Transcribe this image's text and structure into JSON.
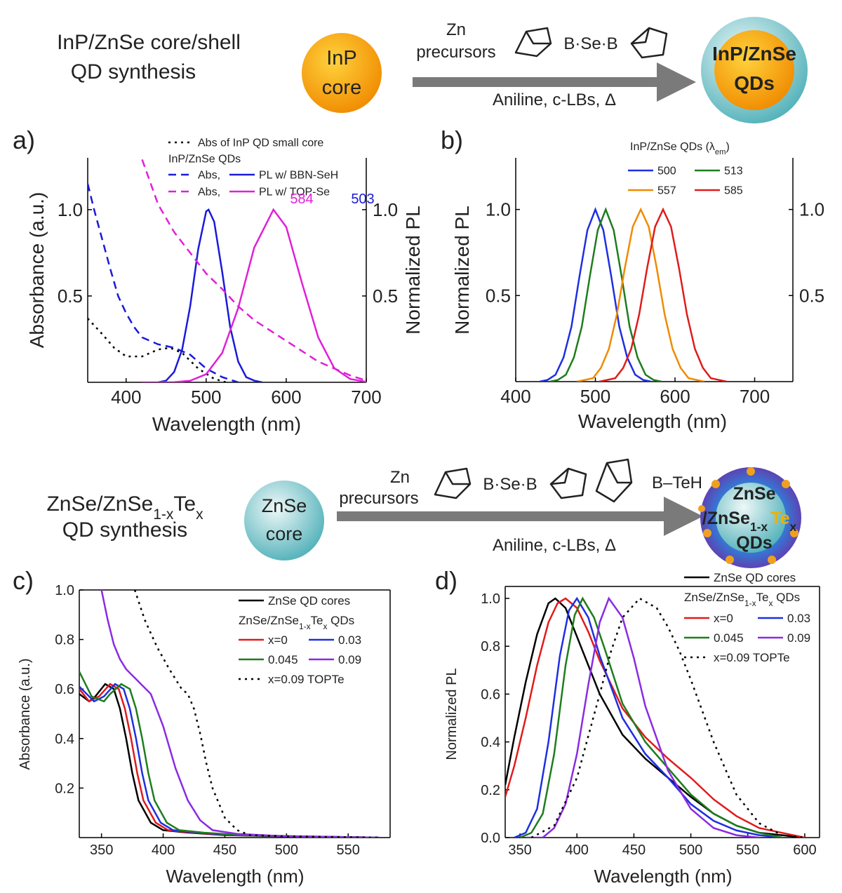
{
  "schemes": [
    {
      "title": [
        "InP/ZnSe core/shell",
        "QD synthesis"
      ],
      "core": [
        "InP",
        "core"
      ],
      "reagent": [
        "Zn",
        "precursors"
      ],
      "ligands": [
        "B·Se·B"
      ],
      "conditions": "Aniline, c-LBs, Δ",
      "product": [
        "InP/ZnSe",
        "QDs"
      ]
    },
    {
      "title": [
        [
          "ZnSe/ZnSe",
          {
            "sub": "1-x"
          },
          "Te",
          {
            "sub": "x"
          }
        ],
        "QD synthesis"
      ],
      "core": [
        "ZnSe",
        "core"
      ],
      "reagent": [
        "Zn",
        "precursors"
      ],
      "ligands": [
        "B·Se·B",
        "B–TeH"
      ],
      "conditions": "Aniline, c-LBs, Δ",
      "product": [
        "ZnSe",
        [
          "/ZnSe",
          {
            "sub": "1-x"
          },
          "Te",
          {
            "sub": "x"
          }
        ],
        "QDs"
      ]
    }
  ],
  "chart_data": [
    {
      "type": "line",
      "panel_label": "a)",
      "xlabel": "Wavelength (nm)",
      "ylabel": "Absorbance (a.u.)",
      "y2label": "Normalized PL",
      "xlim": [
        352,
        700
      ],
      "ylim": [
        0,
        1.3
      ],
      "y2lim": [
        0,
        1.3
      ],
      "xticks": [
        400,
        500,
        600,
        700
      ],
      "yticks": [
        0.5,
        {
          "value": 1,
          "label": "1.0"
        }
      ],
      "y2ticks": [
        0.5,
        {
          "value": 1,
          "label": "1.0"
        }
      ],
      "legend": {
        "subtitle": [
          "InP/ZnSe QDs"
        ]
      },
      "series": [
        {
          "name": "Abs of InP QD small core",
          "color": "#000000",
          "dash": "dotted",
          "x": [
            352,
            370,
            385,
            400,
            420,
            440,
            455,
            470,
            490,
            510,
            525
          ],
          "values": [
            0.37,
            0.28,
            0.2,
            0.15,
            0.15,
            0.19,
            0.2,
            0.17,
            0.08,
            0.02,
            0
          ]
        },
        {
          "name": "Abs,",
          "color": "#1a1adb",
          "dash": "dashed",
          "x": [
            352,
            360,
            370,
            380,
            390,
            400,
            410,
            420,
            440,
            460,
            480,
            500,
            520,
            540
          ],
          "values": [
            1.15,
            1.0,
            0.83,
            0.66,
            0.5,
            0.4,
            0.32,
            0.26,
            0.22,
            0.2,
            0.16,
            0.08,
            0.03,
            0
          ]
        },
        {
          "name": "PL w/ BBN-SeH",
          "color": "#1a1adb",
          "dash": "solid",
          "axis": "y2",
          "x": [
            440,
            450,
            460,
            470,
            480,
            490,
            500,
            503,
            510,
            520,
            530,
            540,
            550,
            560,
            570
          ],
          "values": [
            0,
            0.01,
            0.06,
            0.19,
            0.44,
            0.77,
            0.99,
            1.0,
            0.93,
            0.64,
            0.32,
            0.12,
            0.03,
            0.01,
            0
          ]
        },
        {
          "name": "Abs,",
          "color": "#e020d8",
          "dash": "dashed",
          "x": [
            420,
            440,
            460,
            480,
            500,
            520,
            540,
            560,
            580,
            600,
            620,
            640,
            660,
            680,
            700
          ],
          "values": [
            1.29,
            1.03,
            0.87,
            0.75,
            0.63,
            0.54,
            0.44,
            0.36,
            0.3,
            0.24,
            0.18,
            0.12,
            0.08,
            0.04,
            0.01
          ]
        },
        {
          "name": "PL w/ TOP-Se",
          "color": "#e020d8",
          "dash": "solid",
          "axis": "y2",
          "x": [
            420,
            440,
            460,
            480,
            500,
            520,
            540,
            560,
            584,
            600,
            620,
            640,
            660,
            680,
            700
          ],
          "values": [
            0,
            0,
            0.001,
            0.009,
            0.047,
            0.17,
            0.43,
            0.78,
            1.0,
            0.9,
            0.57,
            0.26,
            0.082,
            0.019,
            0.003
          ]
        }
      ],
      "annotations": [
        {
          "text": "503",
          "color": "#1a1adb"
        },
        {
          "text": "584",
          "color": "#e020d8"
        }
      ]
    },
    {
      "type": "line",
      "panel_label": "b)",
      "xlabel": "Wavelength (nm)",
      "ylabel": "Normalized PL",
      "xlim": [
        400,
        748
      ],
      "ylim": [
        0,
        1.3
      ],
      "y2lim": [
        0,
        1.3
      ],
      "xticks": [
        400,
        500,
        600,
        700
      ],
      "yticks": [
        0.5,
        {
          "value": 1,
          "label": "1.0"
        }
      ],
      "y2ticks": [
        0.5,
        {
          "value": 1,
          "label": "1.0"
        }
      ],
      "legend": {
        "title": [
          "InP/ZnSe QDs (λ",
          {
            "sub": "em"
          },
          ")"
        ]
      },
      "series": [
        {
          "name": "500",
          "color": "#1f2fe0",
          "dash": "solid",
          "x": [
            430,
            440,
            450,
            460,
            470,
            480,
            490,
            500,
            510,
            520,
            530,
            540,
            550,
            560,
            570
          ],
          "values": [
            0,
            0.01,
            0.04,
            0.14,
            0.32,
            0.61,
            0.88,
            1,
            0.88,
            0.61,
            0.32,
            0.14,
            0.04,
            0.01,
            0
          ]
        },
        {
          "name": "513",
          "color": "#1e7d1e",
          "dash": "solid",
          "x": [
            443,
            453,
            463,
            473,
            483,
            493,
            503,
            513,
            523,
            533,
            543,
            553,
            563,
            573,
            583
          ],
          "values": [
            0,
            0.01,
            0.04,
            0.14,
            0.32,
            0.61,
            0.88,
            1,
            0.88,
            0.61,
            0.32,
            0.14,
            0.04,
            0.01,
            0
          ]
        },
        {
          "name": "557",
          "color": "#f08a00",
          "dash": "solid",
          "x": [
            477,
            487,
            497,
            507,
            517,
            527,
            537,
            547,
            557,
            567,
            577,
            587,
            597,
            607,
            617,
            627,
            637
          ],
          "values": [
            0,
            0.01,
            0.02,
            0.08,
            0.19,
            0.39,
            0.66,
            0.9,
            1,
            0.9,
            0.66,
            0.39,
            0.19,
            0.08,
            0.02,
            0.01,
            0
          ]
        },
        {
          "name": "585",
          "color": "#e01b1b",
          "dash": "solid",
          "x": [
            505,
            515,
            525,
            535,
            545,
            555,
            565,
            575,
            585,
            595,
            605,
            615,
            625,
            635,
            645,
            655,
            665
          ],
          "values": [
            0,
            0.01,
            0.02,
            0.08,
            0.19,
            0.39,
            0.66,
            0.9,
            1,
            0.9,
            0.66,
            0.39,
            0.19,
            0.08,
            0.02,
            0.01,
            0
          ]
        }
      ]
    },
    {
      "type": "line",
      "panel_label": "c)",
      "xlabel": "Wavelength (nm)",
      "ylabel": "Absorbance (a.u.)",
      "xlim": [
        332,
        584
      ],
      "ylim": [
        0,
        1.0
      ],
      "xticks": [
        350,
        400,
        450,
        500,
        550
      ],
      "yticks": [
        0.2,
        0.4,
        0.6,
        0.8,
        {
          "value": 1,
          "label": "1.0"
        }
      ],
      "legend": {
        "subtitle": [
          "ZnSe/ZnSe",
          {
            "sub": "1-x"
          },
          "Te",
          {
            "sub": "x"
          },
          " QDs"
        ]
      },
      "series": [
        {
          "name": "ZnSe QD cores",
          "color": "#000000",
          "dash": "solid",
          "x": [
            332,
            340,
            345,
            353,
            360,
            365,
            370,
            375,
            380,
            390,
            400,
            420,
            450,
            500,
            575
          ],
          "values": [
            0.58,
            0.55,
            0.57,
            0.62,
            0.6,
            0.52,
            0.4,
            0.26,
            0.15,
            0.06,
            0.03,
            0.02,
            0.01,
            0.005,
            0
          ]
        },
        {
          "name": "x=0",
          "color": "#e01b1b",
          "dash": "solid",
          "x": [
            332,
            340,
            348,
            357,
            364,
            369,
            374,
            379,
            384,
            394,
            404,
            424,
            454,
            504,
            575
          ],
          "values": [
            0.6,
            0.55,
            0.57,
            0.62,
            0.6,
            0.52,
            0.4,
            0.26,
            0.15,
            0.06,
            0.03,
            0.02,
            0.01,
            0.005,
            0
          ]
        },
        {
          "name": "0.03",
          "color": "#1f2fe0",
          "dash": "solid",
          "x": [
            332,
            344,
            352,
            361,
            368,
            373,
            378,
            383,
            388,
            398,
            408,
            428,
            458,
            508,
            575
          ],
          "values": [
            0.61,
            0.55,
            0.57,
            0.62,
            0.6,
            0.52,
            0.4,
            0.26,
            0.15,
            0.06,
            0.03,
            0.02,
            0.01,
            0.005,
            0
          ]
        },
        {
          "name": "0.045",
          "color": "#1e7d1e",
          "dash": "solid",
          "x": [
            332,
            342,
            352,
            357,
            366,
            373,
            378,
            383,
            388,
            393,
            403,
            413,
            433,
            463,
            513,
            575
          ],
          "values": [
            0.67,
            0.57,
            0.55,
            0.58,
            0.62,
            0.6,
            0.52,
            0.4,
            0.26,
            0.15,
            0.06,
            0.03,
            0.02,
            0.01,
            0.005,
            0
          ]
        },
        {
          "name": "0.09",
          "color": "#8a2be2",
          "dash": "solid",
          "x": [
            350,
            355,
            360,
            365,
            370,
            380,
            390,
            400,
            410,
            420,
            430,
            440,
            460,
            500,
            575
          ],
          "values": [
            1.0,
            0.88,
            0.78,
            0.72,
            0.68,
            0.63,
            0.58,
            0.45,
            0.28,
            0.15,
            0.07,
            0.03,
            0.015,
            0.005,
            0
          ]
        },
        {
          "name": "x=0.09 TOPTe",
          "color": "#000000",
          "dash": "dotted",
          "x": [
            377,
            385,
            395,
            405,
            415,
            420,
            425,
            430,
            435,
            440,
            450,
            460,
            470,
            500,
            575
          ],
          "values": [
            1.0,
            0.88,
            0.77,
            0.68,
            0.6,
            0.58,
            0.52,
            0.42,
            0.3,
            0.2,
            0.08,
            0.03,
            0.01,
            0.005,
            0
          ]
        }
      ]
    },
    {
      "type": "line",
      "panel_label": "d)",
      "xlabel": "Wavelength (nm)",
      "ylabel": "Normalized PL",
      "xlim": [
        337,
        613
      ],
      "ylim": [
        0,
        1.05
      ],
      "xticks": [
        350,
        400,
        450,
        500,
        550,
        600
      ],
      "yticks": [
        {
          "value": 0,
          "label": "0.0"
        },
        0.2,
        0.4,
        0.6,
        0.8,
        {
          "value": 1,
          "label": "1.0"
        }
      ],
      "legend": {
        "subtitle": [
          "ZnSe/ZnSe",
          {
            "sub": "1-x"
          },
          "Te",
          {
            "sub": "x"
          },
          " QDs"
        ]
      },
      "series": [
        {
          "name": "ZnSe QD cores",
          "color": "#000000",
          "dash": "solid",
          "x": [
            337,
            345,
            355,
            365,
            375,
            381,
            390,
            400,
            420,
            440,
            460,
            480,
            500,
            520,
            540,
            560,
            580,
            600
          ],
          "values": [
            0.22,
            0.42,
            0.65,
            0.85,
            0.98,
            1.0,
            0.96,
            0.84,
            0.6,
            0.43,
            0.33,
            0.25,
            0.17,
            0.1,
            0.05,
            0.02,
            0.01,
            0
          ]
        },
        {
          "name": "x=0",
          "color": "#e01b1b",
          "dash": "solid",
          "x": [
            337,
            345,
            355,
            365,
            375,
            383,
            390,
            400,
            410,
            420,
            440,
            460,
            480,
            500,
            520,
            540,
            560,
            580,
            600
          ],
          "values": [
            0.17,
            0.3,
            0.5,
            0.72,
            0.9,
            0.98,
            1.0,
            0.96,
            0.86,
            0.74,
            0.54,
            0.42,
            0.33,
            0.25,
            0.16,
            0.09,
            0.04,
            0.02,
            0
          ]
        },
        {
          "name": "0.03",
          "color": "#1f2fe0",
          "dash": "solid",
          "x": [
            345,
            355,
            365,
            375,
            385,
            393,
            400,
            410,
            420,
            440,
            460,
            480,
            500,
            520,
            540,
            560,
            580
          ],
          "values": [
            0,
            0.02,
            0.12,
            0.4,
            0.76,
            0.95,
            1.0,
            0.92,
            0.76,
            0.5,
            0.35,
            0.25,
            0.14,
            0.07,
            0.03,
            0.01,
            0
          ]
        },
        {
          "name": "0.045",
          "color": "#1e7d1e",
          "dash": "solid",
          "x": [
            350,
            360,
            370,
            380,
            390,
            398,
            405,
            415,
            425,
            440,
            460,
            480,
            500,
            520,
            540,
            560,
            580
          ],
          "values": [
            0,
            0.02,
            0.1,
            0.35,
            0.72,
            0.93,
            1.0,
            0.92,
            0.78,
            0.56,
            0.4,
            0.29,
            0.18,
            0.1,
            0.05,
            0.02,
            0
          ]
        },
        {
          "name": "0.09",
          "color": "#8a2be2",
          "dash": "solid",
          "x": [
            355,
            370,
            380,
            390,
            400,
            410,
            420,
            428,
            440,
            450,
            460,
            480,
            500,
            520,
            540,
            560
          ],
          "values": [
            0,
            0,
            0.04,
            0.14,
            0.35,
            0.64,
            0.9,
            1.0,
            0.92,
            0.75,
            0.55,
            0.28,
            0.12,
            0.04,
            0.01,
            0
          ]
        },
        {
          "name": "x=0.09 TOPTe",
          "color": "#000000",
          "dash": "dotted",
          "x": [
            360,
            380,
            400,
            420,
            430,
            440,
            455,
            470,
            480,
            490,
            500,
            520,
            540,
            560,
            580,
            600
          ],
          "values": [
            0,
            0.05,
            0.25,
            0.6,
            0.78,
            0.92,
            1.0,
            0.96,
            0.88,
            0.78,
            0.66,
            0.4,
            0.18,
            0.06,
            0.01,
            0
          ]
        }
      ]
    }
  ]
}
